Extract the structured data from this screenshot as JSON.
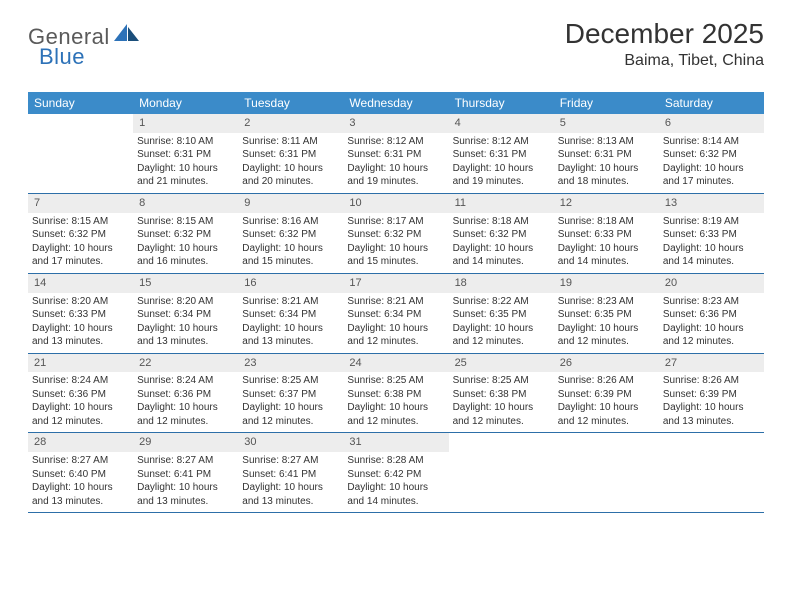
{
  "brand": {
    "part1": "General",
    "part2": "Blue"
  },
  "title": "December 2025",
  "location": "Baima, Tibet, China",
  "weekdays": [
    "Sunday",
    "Monday",
    "Tuesday",
    "Wednesday",
    "Thursday",
    "Friday",
    "Saturday"
  ],
  "colors": {
    "header_bg": "#3b8bc9",
    "header_text": "#ffffff",
    "daynum_bg": "#ededed",
    "row_border": "#2d6fa8",
    "brand_gray": "#5a5a5a",
    "brand_blue": "#2d72b8"
  },
  "weeks": [
    [
      null,
      {
        "n": "1",
        "sr": "Sunrise: 8:10 AM",
        "ss": "Sunset: 6:31 PM",
        "d1": "Daylight: 10 hours",
        "d2": "and 21 minutes."
      },
      {
        "n": "2",
        "sr": "Sunrise: 8:11 AM",
        "ss": "Sunset: 6:31 PM",
        "d1": "Daylight: 10 hours",
        "d2": "and 20 minutes."
      },
      {
        "n": "3",
        "sr": "Sunrise: 8:12 AM",
        "ss": "Sunset: 6:31 PM",
        "d1": "Daylight: 10 hours",
        "d2": "and 19 minutes."
      },
      {
        "n": "4",
        "sr": "Sunrise: 8:12 AM",
        "ss": "Sunset: 6:31 PM",
        "d1": "Daylight: 10 hours",
        "d2": "and 19 minutes."
      },
      {
        "n": "5",
        "sr": "Sunrise: 8:13 AM",
        "ss": "Sunset: 6:31 PM",
        "d1": "Daylight: 10 hours",
        "d2": "and 18 minutes."
      },
      {
        "n": "6",
        "sr": "Sunrise: 8:14 AM",
        "ss": "Sunset: 6:32 PM",
        "d1": "Daylight: 10 hours",
        "d2": "and 17 minutes."
      }
    ],
    [
      {
        "n": "7",
        "sr": "Sunrise: 8:15 AM",
        "ss": "Sunset: 6:32 PM",
        "d1": "Daylight: 10 hours",
        "d2": "and 17 minutes."
      },
      {
        "n": "8",
        "sr": "Sunrise: 8:15 AM",
        "ss": "Sunset: 6:32 PM",
        "d1": "Daylight: 10 hours",
        "d2": "and 16 minutes."
      },
      {
        "n": "9",
        "sr": "Sunrise: 8:16 AM",
        "ss": "Sunset: 6:32 PM",
        "d1": "Daylight: 10 hours",
        "d2": "and 15 minutes."
      },
      {
        "n": "10",
        "sr": "Sunrise: 8:17 AM",
        "ss": "Sunset: 6:32 PM",
        "d1": "Daylight: 10 hours",
        "d2": "and 15 minutes."
      },
      {
        "n": "11",
        "sr": "Sunrise: 8:18 AM",
        "ss": "Sunset: 6:32 PM",
        "d1": "Daylight: 10 hours",
        "d2": "and 14 minutes."
      },
      {
        "n": "12",
        "sr": "Sunrise: 8:18 AM",
        "ss": "Sunset: 6:33 PM",
        "d1": "Daylight: 10 hours",
        "d2": "and 14 minutes."
      },
      {
        "n": "13",
        "sr": "Sunrise: 8:19 AM",
        "ss": "Sunset: 6:33 PM",
        "d1": "Daylight: 10 hours",
        "d2": "and 14 minutes."
      }
    ],
    [
      {
        "n": "14",
        "sr": "Sunrise: 8:20 AM",
        "ss": "Sunset: 6:33 PM",
        "d1": "Daylight: 10 hours",
        "d2": "and 13 minutes."
      },
      {
        "n": "15",
        "sr": "Sunrise: 8:20 AM",
        "ss": "Sunset: 6:34 PM",
        "d1": "Daylight: 10 hours",
        "d2": "and 13 minutes."
      },
      {
        "n": "16",
        "sr": "Sunrise: 8:21 AM",
        "ss": "Sunset: 6:34 PM",
        "d1": "Daylight: 10 hours",
        "d2": "and 13 minutes."
      },
      {
        "n": "17",
        "sr": "Sunrise: 8:21 AM",
        "ss": "Sunset: 6:34 PM",
        "d1": "Daylight: 10 hours",
        "d2": "and 12 minutes."
      },
      {
        "n": "18",
        "sr": "Sunrise: 8:22 AM",
        "ss": "Sunset: 6:35 PM",
        "d1": "Daylight: 10 hours",
        "d2": "and 12 minutes."
      },
      {
        "n": "19",
        "sr": "Sunrise: 8:23 AM",
        "ss": "Sunset: 6:35 PM",
        "d1": "Daylight: 10 hours",
        "d2": "and 12 minutes."
      },
      {
        "n": "20",
        "sr": "Sunrise: 8:23 AM",
        "ss": "Sunset: 6:36 PM",
        "d1": "Daylight: 10 hours",
        "d2": "and 12 minutes."
      }
    ],
    [
      {
        "n": "21",
        "sr": "Sunrise: 8:24 AM",
        "ss": "Sunset: 6:36 PM",
        "d1": "Daylight: 10 hours",
        "d2": "and 12 minutes."
      },
      {
        "n": "22",
        "sr": "Sunrise: 8:24 AM",
        "ss": "Sunset: 6:36 PM",
        "d1": "Daylight: 10 hours",
        "d2": "and 12 minutes."
      },
      {
        "n": "23",
        "sr": "Sunrise: 8:25 AM",
        "ss": "Sunset: 6:37 PM",
        "d1": "Daylight: 10 hours",
        "d2": "and 12 minutes."
      },
      {
        "n": "24",
        "sr": "Sunrise: 8:25 AM",
        "ss": "Sunset: 6:38 PM",
        "d1": "Daylight: 10 hours",
        "d2": "and 12 minutes."
      },
      {
        "n": "25",
        "sr": "Sunrise: 8:25 AM",
        "ss": "Sunset: 6:38 PM",
        "d1": "Daylight: 10 hours",
        "d2": "and 12 minutes."
      },
      {
        "n": "26",
        "sr": "Sunrise: 8:26 AM",
        "ss": "Sunset: 6:39 PM",
        "d1": "Daylight: 10 hours",
        "d2": "and 12 minutes."
      },
      {
        "n": "27",
        "sr": "Sunrise: 8:26 AM",
        "ss": "Sunset: 6:39 PM",
        "d1": "Daylight: 10 hours",
        "d2": "and 13 minutes."
      }
    ],
    [
      {
        "n": "28",
        "sr": "Sunrise: 8:27 AM",
        "ss": "Sunset: 6:40 PM",
        "d1": "Daylight: 10 hours",
        "d2": "and 13 minutes."
      },
      {
        "n": "29",
        "sr": "Sunrise: 8:27 AM",
        "ss": "Sunset: 6:41 PM",
        "d1": "Daylight: 10 hours",
        "d2": "and 13 minutes."
      },
      {
        "n": "30",
        "sr": "Sunrise: 8:27 AM",
        "ss": "Sunset: 6:41 PM",
        "d1": "Daylight: 10 hours",
        "d2": "and 13 minutes."
      },
      {
        "n": "31",
        "sr": "Sunrise: 8:28 AM",
        "ss": "Sunset: 6:42 PM",
        "d1": "Daylight: 10 hours",
        "d2": "and 14 minutes."
      },
      null,
      null,
      null
    ]
  ]
}
